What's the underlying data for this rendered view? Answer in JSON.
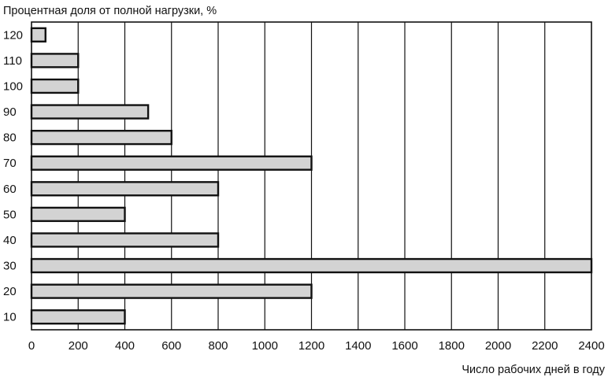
{
  "chart_data": {
    "type": "bar",
    "orientation": "horizontal",
    "categories": [
      "120",
      "110",
      "100",
      "90",
      "80",
      "70",
      "60",
      "50",
      "40",
      "30",
      "20",
      "10"
    ],
    "values": [
      60,
      200,
      200,
      500,
      600,
      1200,
      800,
      400,
      800,
      2400,
      1200,
      400
    ],
    "x_ticks": [
      "0",
      "200",
      "400",
      "600",
      "800",
      "1000",
      "1200",
      "1400",
      "1600",
      "1800",
      "2000",
      "2200",
      "2400"
    ],
    "xlim": [
      0,
      2400
    ],
    "ylabel": "Процентная доля от полной нагрузки, %",
    "xlabel": "Число рабочих дней в году",
    "grid": "vertical",
    "bar_color": "#d3d3d3",
    "bar_edge_color": "#111111",
    "frame_color": "#111111"
  }
}
